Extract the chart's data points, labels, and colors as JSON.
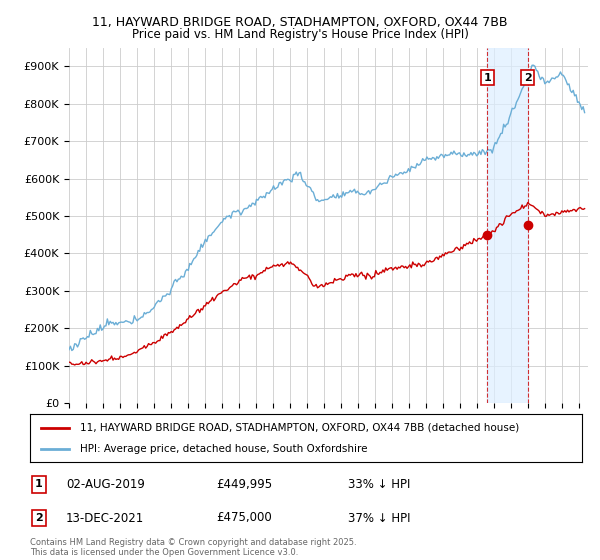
{
  "title_line1": "11, HAYWARD BRIDGE ROAD, STADHAMPTON, OXFORD, OX44 7BB",
  "title_line2": "Price paid vs. HM Land Registry's House Price Index (HPI)",
  "ylim": [
    0,
    950000
  ],
  "yticks": [
    0,
    100000,
    200000,
    300000,
    400000,
    500000,
    600000,
    700000,
    800000,
    900000
  ],
  "ytick_labels": [
    "£0",
    "£100K",
    "£200K",
    "£300K",
    "£400K",
    "£500K",
    "£600K",
    "£700K",
    "£800K",
    "£900K"
  ],
  "xlim_start": 1995.0,
  "xlim_end": 2025.5,
  "hpi_color": "#6baed6",
  "price_color": "#cc0000",
  "shade_color": "#ddeeff",
  "legend_label_price": "11, HAYWARD BRIDGE ROAD, STADHAMPTON, OXFORD, OX44 7BB (detached house)",
  "legend_label_hpi": "HPI: Average price, detached house, South Oxfordshire",
  "annotation1_num": "1",
  "annotation1_date": "02-AUG-2019",
  "annotation1_price": "£449,995",
  "annotation1_pct": "33% ↓ HPI",
  "annotation1_year": 2019.58,
  "annotation1_value": 449995,
  "annotation2_num": "2",
  "annotation2_date": "13-DEC-2021",
  "annotation2_price": "£475,000",
  "annotation2_pct": "37% ↓ HPI",
  "annotation2_year": 2021.95,
  "annotation2_value": 475000,
  "footnote": "Contains HM Land Registry data © Crown copyright and database right 2025.\nThis data is licensed under the Open Government Licence v3.0.",
  "bg_color": "#ffffff",
  "grid_color": "#cccccc"
}
